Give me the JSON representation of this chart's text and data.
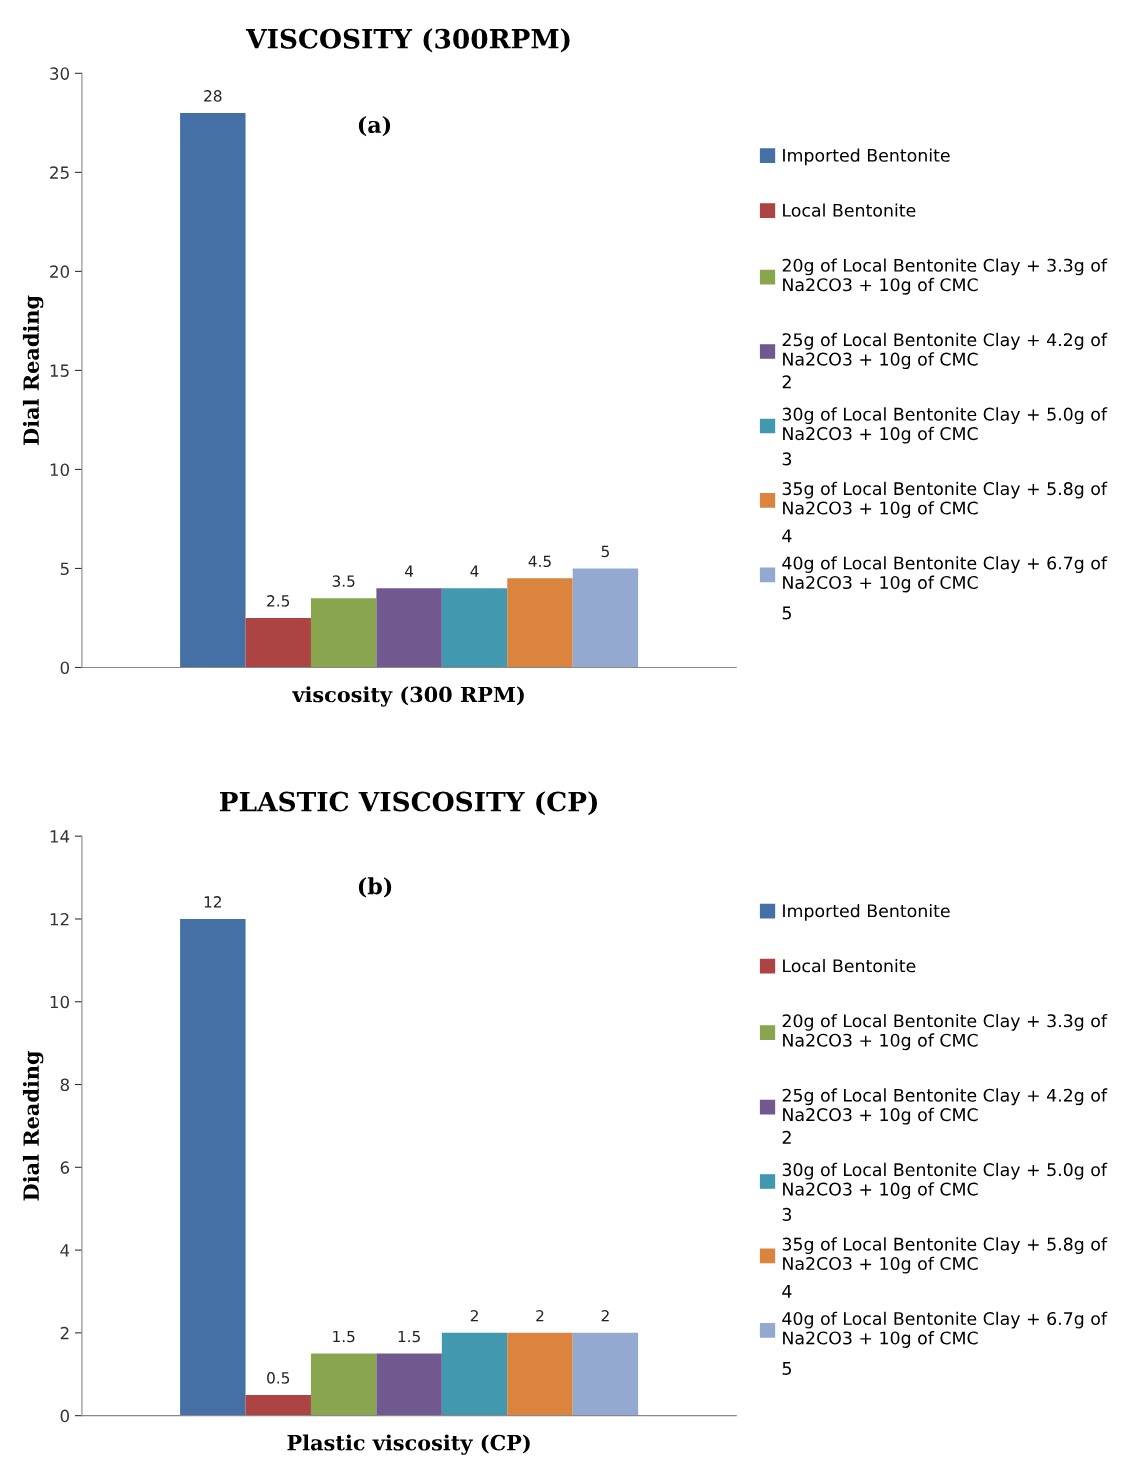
{
  "chart_data": [
    {
      "type": "bar",
      "title": "VISCOSITY (300RPM)",
      "xlabel": "viscosity (300 RPM)",
      "ylabel": "Dial Reading",
      "categories": [
        null
      ],
      "ylim": [
        0,
        30
      ],
      "yticks": [
        0,
        5,
        10,
        15,
        20,
        25,
        30
      ],
      "data_labels": true,
      "legend": "right",
      "grid": false,
      "annotations": [
        "(a)",
        "2",
        "3",
        "4",
        "5"
      ],
      "series": [
        {
          "name": "Imported Bentonite",
          "color": "#4470a6",
          "values": [
            28
          ]
        },
        {
          "name": "Local Bentonite",
          "color": "#ab4442",
          "values": [
            2.5
          ]
        },
        {
          "name": "20g of Local Bentonite Clay + 3.3g of\nNa2CO3 + 10g of CMC",
          "color": "#89a54e",
          "values": [
            3.5
          ]
        },
        {
          "name": "25g of Local Bentonite Clay + 4.2g of\nNa2CO3 + 10g of CMC",
          "color": "#71588f",
          "values": [
            4
          ]
        },
        {
          "name": "30g of Local Bentonite Clay + 5.0g of\nNa2CO3 + 10g of CMC",
          "color": "#4198af",
          "values": [
            4
          ]
        },
        {
          "name": "35g of Local Bentonite Clay + 5.8g of\nNa2CO3 + 10g of CMC",
          "color": "#db843d",
          "values": [
            4.5
          ]
        },
        {
          "name": "40g of Local Bentonite Clay + 6.7g of\nNa2CO3 + 10g of CMC",
          "color": "#93a9cf",
          "values": [
            5
          ]
        }
      ]
    },
    {
      "type": "bar",
      "title": "PLASTIC VISCOSITY (CP)",
      "xlabel": "Plastic viscosity (CP)",
      "ylabel": "Dial Reading",
      "categories": [
        null
      ],
      "ylim": [
        0,
        14
      ],
      "yticks": [
        0,
        2,
        4,
        6,
        8,
        10,
        12,
        14
      ],
      "data_labels": true,
      "legend": "right",
      "grid": false,
      "annotations": [
        "(b)",
        "2",
        "3",
        "4",
        "5"
      ],
      "series": [
        {
          "name": "Imported Bentonite",
          "color": "#4470a6",
          "values": [
            12
          ]
        },
        {
          "name": "Local Bentonite",
          "color": "#ab4442",
          "values": [
            0.5
          ]
        },
        {
          "name": "20g of Local Bentonite Clay + 3.3g of\nNa2CO3 + 10g of CMC",
          "color": "#89a54e",
          "values": [
            1.5
          ]
        },
        {
          "name": "25g of Local Bentonite Clay + 4.2g of\nNa2CO3 + 10g of CMC",
          "color": "#71588f",
          "values": [
            1.5
          ]
        },
        {
          "name": "30g of Local Bentonite Clay + 5.0g of\nNa2CO3 + 10g of CMC",
          "color": "#4198af",
          "values": [
            2
          ]
        },
        {
          "name": "35g of Local Bentonite Clay + 5.8g of\nNa2CO3 + 10g of CMC",
          "color": "#db843d",
          "values": [
            2
          ]
        },
        {
          "name": "40g of Local Bentonite Clay + 6.7g of\nNa2CO3 + 10g of CMC",
          "color": "#93a9cf",
          "values": [
            2
          ]
        }
      ]
    }
  ]
}
